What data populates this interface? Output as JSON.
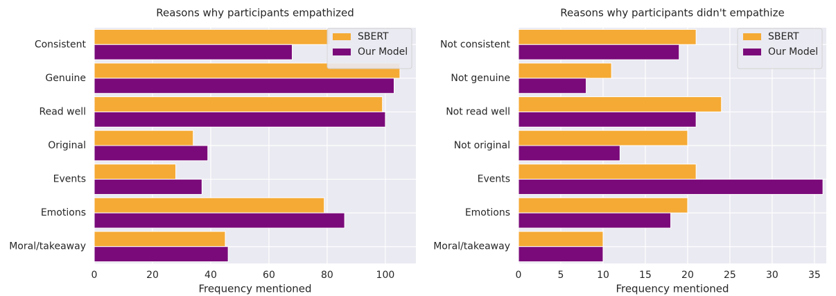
{
  "chart_data": [
    {
      "type": "barh",
      "title": "Reasons why participants empathized",
      "xlabel": "Frequency mentioned",
      "categories": [
        "Consistent",
        "Genuine",
        "Read well",
        "Original",
        "Events",
        "Emotions",
        "Moral/takeaway"
      ],
      "series": [
        {
          "name": "SBERT",
          "color": "#f5aa35",
          "values": [
            81,
            105,
            99,
            34,
            28,
            79,
            45
          ]
        },
        {
          "name": "Our Model",
          "color": "#7a0a7a",
          "values": [
            68,
            103,
            100,
            39,
            37,
            86,
            46
          ]
        }
      ],
      "xlim": [
        0,
        110.5
      ],
      "xticks": [
        0,
        20,
        40,
        60,
        80,
        100
      ],
      "grid": true,
      "legend": "upper right"
    },
    {
      "type": "barh",
      "title": "Reasons why participants didn't empathize",
      "xlabel": "Frequency mentioned",
      "categories": [
        "Not consistent",
        "Not genuine",
        "Not read well",
        "Not original",
        "Events",
        "Emotions",
        "Moral/takeaway"
      ],
      "series": [
        {
          "name": "SBERT",
          "color": "#f5aa35",
          "values": [
            21,
            11,
            24,
            20,
            21,
            20,
            10
          ]
        },
        {
          "name": "Our Model",
          "color": "#7a0a7a",
          "values": [
            19,
            8,
            21,
            12,
            36,
            18,
            10
          ]
        }
      ],
      "xlim": [
        0,
        36.4
      ],
      "xticks": [
        0,
        5,
        10,
        15,
        20,
        25,
        30,
        35
      ],
      "grid": true,
      "legend": "upper right"
    }
  ]
}
